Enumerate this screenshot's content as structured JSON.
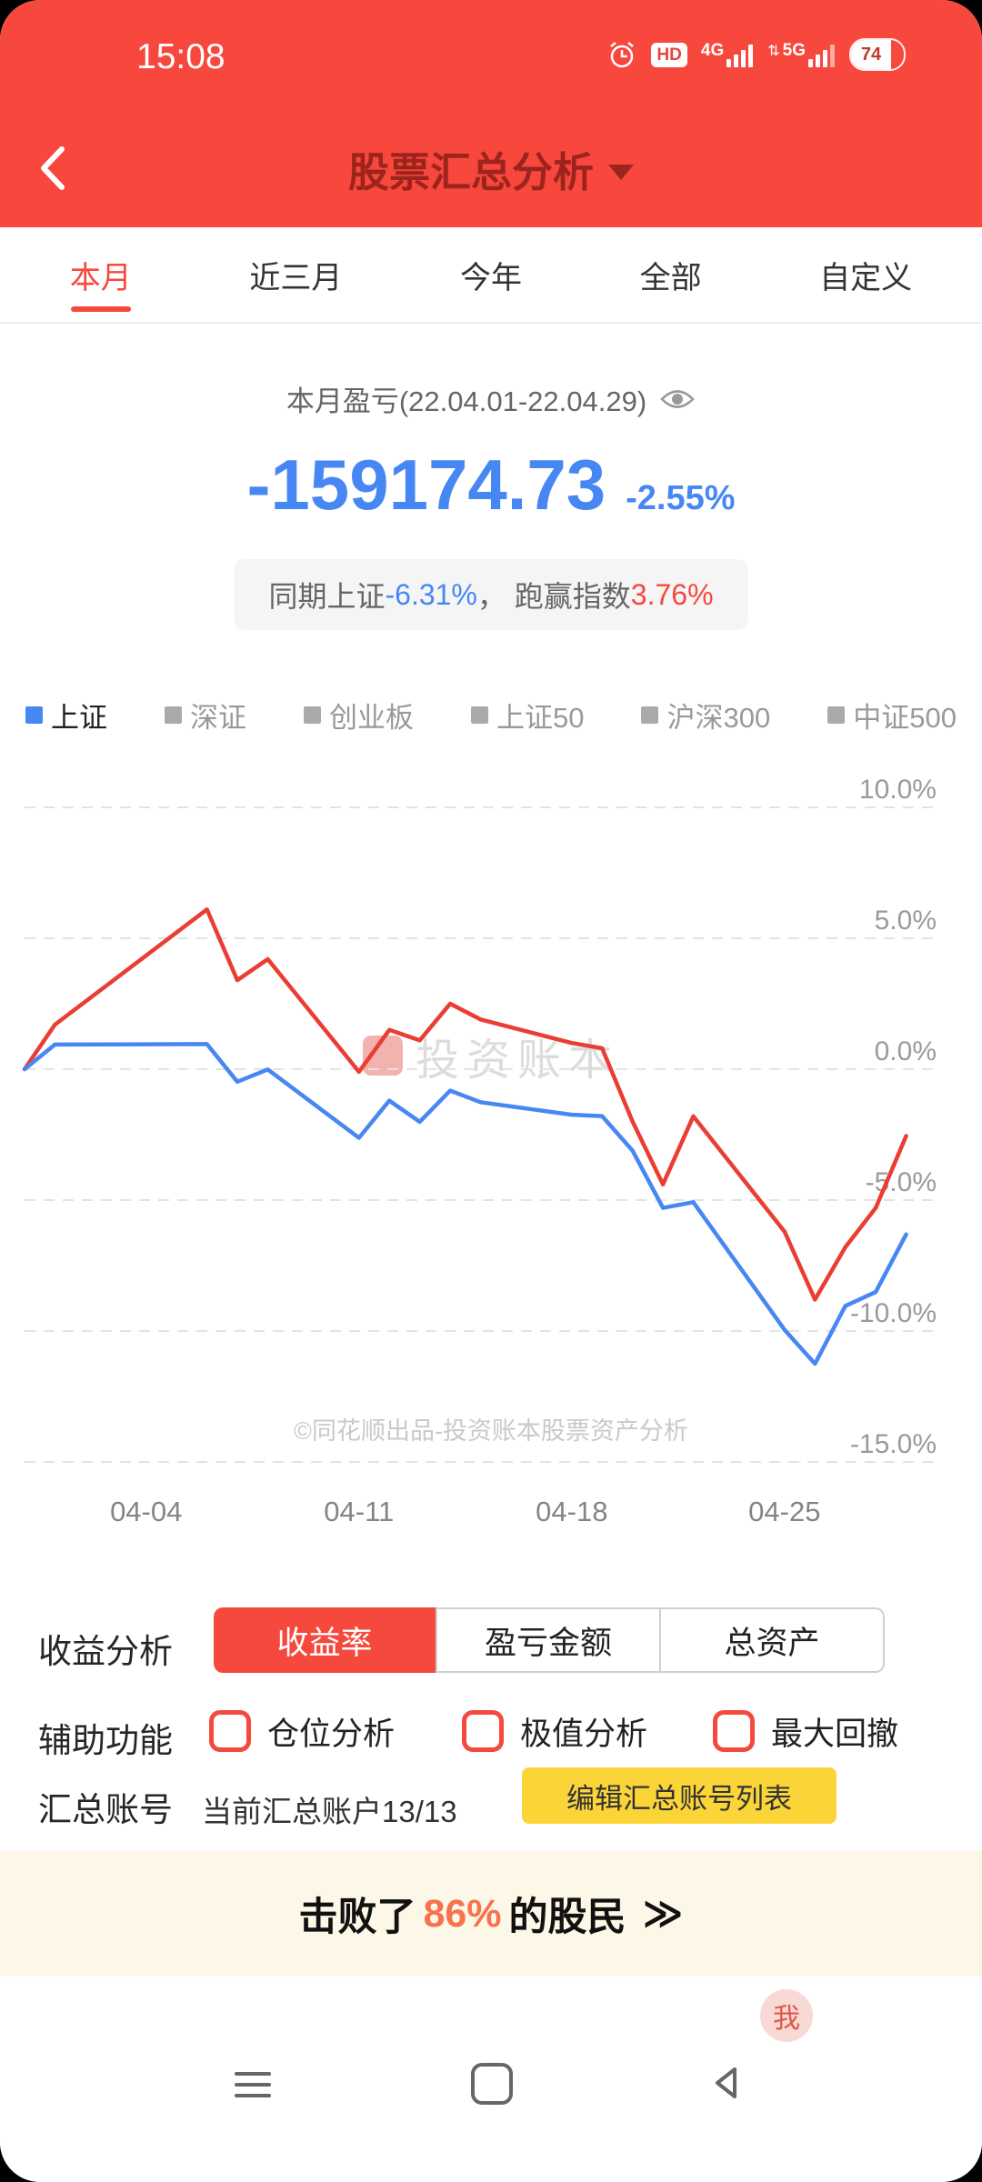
{
  "status_bar": {
    "time": "15:08",
    "hd_label": "HD",
    "network_1": "4G",
    "network_2": "5G",
    "updown_arrows": "⇅",
    "battery_percent": "74"
  },
  "header": {
    "title": "股票汇总分析"
  },
  "tabs": {
    "items": [
      {
        "label": "本月",
        "active": true
      },
      {
        "label": "近三月",
        "active": false
      },
      {
        "label": "今年",
        "active": false
      },
      {
        "label": "全部",
        "active": false
      },
      {
        "label": "自定义",
        "active": false
      }
    ]
  },
  "summary": {
    "period_label": "本月盈亏(22.04.01-22.04.29)",
    "amount": "-159174.73",
    "percent": "-2.55%",
    "compare_prefix": "同期上证 ",
    "index_change": "-6.31%",
    "compare_middle": "， 跑赢指数 ",
    "outperform": "3.76%"
  },
  "legend": {
    "items": [
      {
        "label": "上证",
        "active": true
      },
      {
        "label": "深证",
        "active": false
      },
      {
        "label": "创业板",
        "active": false
      },
      {
        "label": "上证50",
        "active": false
      },
      {
        "label": "沪深300",
        "active": false
      },
      {
        "label": "中证500",
        "active": false
      }
    ]
  },
  "chart_data": {
    "type": "line",
    "unit": "percent",
    "x_unit": "calendar day offset from 03-31",
    "x_range_days": 30,
    "x_ticks": [
      {
        "day": 4,
        "label": "04-04"
      },
      {
        "day": 11,
        "label": "04-11"
      },
      {
        "day": 18,
        "label": "04-18"
      },
      {
        "day": 25,
        "label": "04-25"
      }
    ],
    "y_ticks": [
      10,
      5,
      0,
      -5,
      -10,
      -15
    ],
    "y_tick_labels": [
      "10.0%",
      "5.0%",
      "0.0%",
      "-5.0%",
      "-10.0%",
      "-15.0%"
    ],
    "ylim": [
      -15,
      10
    ],
    "grid": "dashed",
    "legend_position": "top-left",
    "series": [
      {
        "name": "收益率",
        "color": "#ea3d33",
        "points": [
          [
            0,
            0
          ],
          [
            1,
            1.7
          ],
          [
            6,
            6.1
          ],
          [
            7,
            3.4
          ],
          [
            8,
            4.2
          ],
          [
            11,
            -0.1
          ],
          [
            12,
            1.5
          ],
          [
            13,
            1.1
          ],
          [
            14,
            2.5
          ],
          [
            15,
            1.9
          ],
          [
            18,
            1.0
          ],
          [
            19,
            0.8
          ],
          [
            20,
            -2.0
          ],
          [
            21,
            -4.4
          ],
          [
            22,
            -1.8
          ],
          [
            25,
            -6.2
          ],
          [
            26,
            -8.8
          ],
          [
            27,
            -6.8
          ],
          [
            28,
            -5.3
          ],
          [
            29,
            -2.55
          ]
        ]
      },
      {
        "name": "上证",
        "color": "#4787f3",
        "points": [
          [
            0,
            0
          ],
          [
            1,
            0.94
          ],
          [
            6,
            0.96
          ],
          [
            7,
            -0.48
          ],
          [
            8,
            -0.01
          ],
          [
            11,
            -2.62
          ],
          [
            12,
            -1.2
          ],
          [
            13,
            -2.01
          ],
          [
            14,
            -0.82
          ],
          [
            15,
            -1.26
          ],
          [
            18,
            -1.74
          ],
          [
            19,
            -1.79
          ],
          [
            20,
            -3.11
          ],
          [
            21,
            -5.3
          ],
          [
            22,
            -5.08
          ],
          [
            25,
            -9.95
          ],
          [
            26,
            -11.25
          ],
          [
            27,
            -9.04
          ],
          [
            28,
            -8.51
          ],
          [
            29,
            -6.31
          ]
        ]
      }
    ],
    "watermark": "投资账本",
    "copyright": "©同花顺出品-投资账本股票资产分析"
  },
  "controls": {
    "profit_label": "收益分析",
    "profit_buttons": [
      {
        "label": "收益率",
        "active": true
      },
      {
        "label": "盈亏金额",
        "active": false
      },
      {
        "label": "总资产",
        "active": false
      }
    ],
    "aux_label": "辅助功能",
    "aux_options": [
      {
        "label": "仓位分析",
        "checked": false
      },
      {
        "label": "极值分析",
        "checked": false
      },
      {
        "label": "最大回撤",
        "checked": false
      }
    ],
    "accounts_label": "汇总账号",
    "accounts_current": "当前汇总账户13/13",
    "edit_accounts_button": "编辑汇总账号列表"
  },
  "banner": {
    "prefix": "击败了",
    "percent": "86%",
    "suffix": "的股民",
    "arrow": "≫"
  },
  "floating_button": {
    "label": "我"
  },
  "colors": {
    "accent_red": "#f5493d",
    "accent_blue": "#4787f3",
    "line_red": "#ea3d33",
    "line_blue": "#4787f3",
    "highlight_orange": "#f8724d",
    "button_yellow": "#fbd438"
  }
}
